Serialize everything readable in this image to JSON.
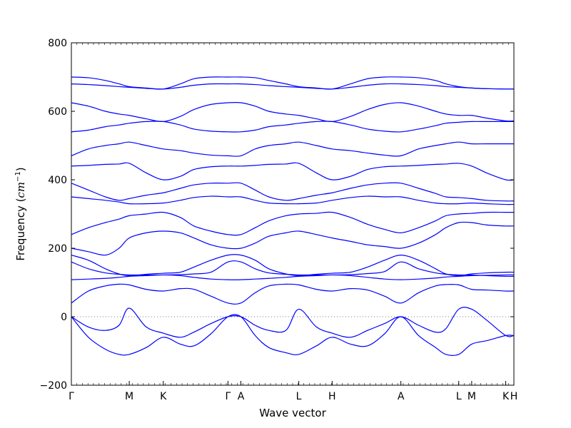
{
  "chart_data": {
    "type": "line",
    "title": "",
    "xlabel": "Wave vector",
    "ylabel_main": "Frequency (",
    "ylabel_math": "cm",
    "ylabel_sup": "−1",
    "ylabel_close": ")",
    "ylim": [
      -200,
      800
    ],
    "y_ticks": [
      -200,
      0,
      200,
      400,
      600,
      800
    ],
    "x_range": [
      0,
      13.0
    ],
    "high_symmetry_points": [
      {
        "label": "Γ",
        "x": 0.0
      },
      {
        "label": "M",
        "x": 1.7
      },
      {
        "label": "K",
        "x": 2.7
      },
      {
        "label": "Γ",
        "x": 4.6
      },
      {
        "label": "A",
        "x": 4.98
      },
      {
        "label": "L",
        "x": 6.68
      },
      {
        "label": "H",
        "x": 7.66
      },
      {
        "label": "A",
        "x": 9.68
      },
      {
        "label": "L",
        "x": 11.38
      },
      {
        "label": "M",
        "x": 11.76
      },
      {
        "label": "K",
        "x": 12.76
      },
      {
        "label": "H",
        "x": 13.0
      }
    ],
    "zero_line": true,
    "line_color": "#0000ff",
    "series": [
      {
        "x": [
          0,
          0.5,
          1,
          1.4,
          1.7,
          2.2,
          2.7,
          3.2,
          3.6,
          4.1,
          4.6,
          4.98,
          5.4,
          5.8,
          6.3,
          6.68,
          7.2,
          7.66,
          8.2,
          8.7,
          9.2,
          9.68,
          10.2,
          10.7,
          11.0,
          11.38,
          11.76,
          12.2,
          12.76,
          13.0
        ],
        "y": [
          0,
          -30,
          -40,
          -25,
          25,
          -30,
          -48,
          -60,
          -45,
          -20,
          0,
          0,
          -25,
          -40,
          -40,
          22,
          -30,
          -48,
          -60,
          -40,
          -20,
          0,
          -25,
          -45,
          -35,
          22,
          22,
          -10,
          -55,
          -55
        ]
      },
      {
        "x": [
          0,
          0.5,
          1,
          1.4,
          1.7,
          2.2,
          2.7,
          3.2,
          3.6,
          4.1,
          4.6,
          4.98,
          5.4,
          5.8,
          6.3,
          6.68,
          7.2,
          7.66,
          8.2,
          8.7,
          9.2,
          9.68,
          10.2,
          10.7,
          11.0,
          11.38,
          11.76,
          12.2,
          12.76,
          13.0
        ],
        "y": [
          0,
          -60,
          -95,
          -110,
          -110,
          -90,
          -60,
          -80,
          -85,
          -50,
          0,
          0,
          -55,
          -90,
          -105,
          -110,
          -85,
          -60,
          -80,
          -85,
          -50,
          0,
          -55,
          -90,
          -110,
          -110,
          -80,
          -70,
          -55,
          -55
        ]
      },
      {
        "x": [
          0,
          0.5,
          1,
          1.4,
          1.7,
          2.2,
          2.7,
          3.2,
          3.6,
          4.1,
          4.6,
          4.98,
          5.4,
          5.8,
          6.3,
          6.68,
          7.2,
          7.66,
          8.2,
          8.7,
          9.2,
          9.68,
          10.2,
          10.7,
          11.0,
          11.38,
          11.76,
          12.2,
          12.76,
          13.0
        ],
        "y": [
          40,
          75,
          90,
          95,
          93,
          80,
          75,
          82,
          80,
          60,
          40,
          40,
          70,
          90,
          95,
          93,
          80,
          75,
          82,
          78,
          60,
          40,
          70,
          90,
          94,
          93,
          80,
          78,
          75,
          75
        ]
      },
      {
        "x": [
          0,
          0.5,
          1,
          1.4,
          1.7,
          2.2,
          2.7,
          3.2,
          3.6,
          4.1,
          4.6,
          4.98,
          5.4,
          5.8,
          6.3,
          6.68,
          7.2,
          7.66,
          8.2,
          8.7,
          9.2,
          9.68,
          10.2,
          10.7,
          11.0,
          11.38,
          11.76,
          12.2,
          12.76,
          13.0
        ],
        "y": [
          108,
          110,
          112,
          115,
          118,
          120,
          122,
          120,
          115,
          110,
          108,
          108,
          110,
          112,
          115,
          118,
          120,
          122,
          120,
          115,
          110,
          108,
          110,
          113,
          116,
          118,
          120,
          121,
          122,
          122
        ]
      },
      {
        "x": [
          0,
          0.5,
          1,
          1.4,
          1.7,
          2.2,
          2.7,
          3.2,
          3.6,
          4.1,
          4.6,
          4.98,
          5.4,
          5.8,
          6.3,
          6.68,
          7.2,
          7.66,
          8.2,
          8.7,
          9.2,
          9.68,
          10.2,
          10.7,
          11.0,
          11.38,
          11.76,
          12.2,
          12.76,
          13.0
        ],
        "y": [
          160,
          140,
          128,
          124,
          122,
          122,
          122,
          123,
          125,
          130,
          160,
          160,
          140,
          128,
          124,
          122,
          122,
          122,
          123,
          126,
          132,
          160,
          140,
          128,
          124,
          122,
          122,
          120,
          118,
          118
        ]
      },
      {
        "x": [
          0,
          0.5,
          1,
          1.4,
          1.7,
          2.2,
          2.7,
          3.2,
          3.6,
          4.1,
          4.6,
          4.98,
          5.4,
          5.8,
          6.3,
          6.68,
          7.2,
          7.66,
          8.2,
          8.7,
          9.2,
          9.68,
          10.2,
          10.7,
          11.0,
          11.38,
          11.76,
          12.2,
          12.76,
          13.0
        ],
        "y": [
          180,
          165,
          140,
          125,
          120,
          124,
          127,
          130,
          145,
          165,
          180,
          180,
          165,
          140,
          125,
          120,
          124,
          127,
          130,
          145,
          165,
          180,
          165,
          140,
          125,
          120,
          125,
          128,
          130,
          130
        ]
      },
      {
        "x": [
          0,
          0.5,
          1,
          1.4,
          1.7,
          2.2,
          2.7,
          3.2,
          3.6,
          4.1,
          4.6,
          4.98,
          5.4,
          5.8,
          6.3,
          6.68,
          7.2,
          7.66,
          8.2,
          8.7,
          9.2,
          9.68,
          10.2,
          10.7,
          11.0,
          11.38,
          11.76,
          12.2,
          12.76,
          13.0
        ],
        "y": [
          200,
          190,
          180,
          200,
          230,
          245,
          250,
          245,
          230,
          210,
          200,
          200,
          215,
          235,
          245,
          250,
          240,
          230,
          220,
          210,
          205,
          200,
          215,
          240,
          260,
          275,
          275,
          268,
          265,
          265
        ]
      },
      {
        "x": [
          0,
          0.5,
          1,
          1.4,
          1.7,
          2.2,
          2.7,
          3.2,
          3.6,
          4.1,
          4.6,
          4.98,
          5.4,
          5.8,
          6.3,
          6.68,
          7.2,
          7.66,
          8.2,
          8.7,
          9.2,
          9.68,
          10.2,
          10.7,
          11.0,
          11.38,
          11.76,
          12.2,
          12.76,
          13.0
        ],
        "y": [
          240,
          260,
          275,
          285,
          295,
          300,
          305,
          290,
          265,
          250,
          240,
          240,
          260,
          280,
          295,
          300,
          302,
          305,
          290,
          270,
          255,
          245,
          260,
          280,
          295,
          300,
          302,
          305,
          305,
          305
        ]
      },
      {
        "x": [
          0,
          0.5,
          1,
          1.4,
          1.7,
          2.2,
          2.7,
          3.2,
          3.6,
          4.1,
          4.6,
          4.98,
          5.4,
          5.8,
          6.3,
          6.68,
          7.2,
          7.66,
          8.2,
          8.7,
          9.2,
          9.68,
          10.2,
          10.7,
          11.0,
          11.38,
          11.76,
          12.2,
          12.76,
          13.0
        ],
        "y": [
          350,
          345,
          340,
          335,
          330,
          330,
          332,
          340,
          348,
          352,
          350,
          350,
          340,
          332,
          330,
          330,
          332,
          340,
          348,
          352,
          350,
          350,
          340,
          332,
          330,
          330,
          332,
          330,
          328,
          328
        ]
      },
      {
        "x": [
          0,
          0.5,
          1,
          1.4,
          1.7,
          2.2,
          2.7,
          3.2,
          3.6,
          4.1,
          4.6,
          4.98,
          5.4,
          5.8,
          6.3,
          6.68,
          7.2,
          7.66,
          8.2,
          8.7,
          9.2,
          9.68,
          10.2,
          10.7,
          11.0,
          11.38,
          11.76,
          12.2,
          12.76,
          13.0
        ],
        "y": [
          390,
          370,
          350,
          340,
          345,
          355,
          362,
          375,
          385,
          390,
          390,
          390,
          370,
          350,
          340,
          345,
          355,
          362,
          375,
          385,
          390,
          390,
          375,
          360,
          350,
          348,
          345,
          340,
          338,
          338
        ]
      },
      {
        "x": [
          0,
          0.5,
          1,
          1.4,
          1.7,
          2.2,
          2.7,
          3.2,
          3.6,
          4.1,
          4.6,
          4.98,
          5.4,
          5.8,
          6.3,
          6.68,
          7.2,
          7.66,
          8.2,
          8.7,
          9.2,
          9.68,
          10.2,
          10.7,
          11.0,
          11.38,
          11.76,
          12.2,
          12.76,
          13.0
        ],
        "y": [
          440,
          442,
          445,
          446,
          448,
          420,
          400,
          410,
          430,
          438,
          440,
          440,
          442,
          445,
          446,
          448,
          420,
          400,
          410,
          430,
          438,
          440,
          442,
          445,
          446,
          448,
          440,
          420,
          400,
          400
        ]
      },
      {
        "x": [
          0,
          0.5,
          1,
          1.4,
          1.7,
          2.2,
          2.7,
          3.2,
          3.6,
          4.1,
          4.6,
          4.98,
          5.4,
          5.8,
          6.3,
          6.68,
          7.2,
          7.66,
          8.2,
          8.7,
          9.2,
          9.68,
          10.2,
          10.7,
          11.0,
          11.38,
          11.76,
          12.2,
          12.76,
          13.0
        ],
        "y": [
          470,
          490,
          500,
          505,
          510,
          500,
          490,
          485,
          478,
          472,
          470,
          470,
          490,
          500,
          505,
          510,
          500,
          490,
          485,
          478,
          472,
          470,
          490,
          500,
          505,
          510,
          505,
          505,
          505,
          505
        ]
      },
      {
        "x": [
          0,
          0.5,
          1,
          1.4,
          1.7,
          2.2,
          2.7,
          3.2,
          3.6,
          4.1,
          4.6,
          4.98,
          5.4,
          5.8,
          6.3,
          6.68,
          7.2,
          7.66,
          8.2,
          8.7,
          9.2,
          9.68,
          10.2,
          10.7,
          11.0,
          11.38,
          11.76,
          12.2,
          12.76,
          13.0
        ],
        "y": [
          540,
          545,
          555,
          560,
          565,
          570,
          570,
          560,
          548,
          542,
          540,
          540,
          545,
          555,
          560,
          565,
          570,
          570,
          560,
          548,
          542,
          540,
          548,
          558,
          565,
          568,
          570,
          570,
          570,
          570
        ]
      },
      {
        "x": [
          0,
          0.5,
          1,
          1.4,
          1.7,
          2.2,
          2.7,
          3.2,
          3.6,
          4.1,
          4.6,
          4.98,
          5.4,
          5.8,
          6.3,
          6.68,
          7.2,
          7.66,
          8.2,
          8.7,
          9.2,
          9.68,
          10.2,
          10.7,
          11.0,
          11.38,
          11.76,
          12.2,
          12.76,
          13.0
        ],
        "y": [
          625,
          615,
          600,
          592,
          588,
          578,
          570,
          585,
          605,
          620,
          625,
          625,
          615,
          600,
          592,
          588,
          578,
          570,
          585,
          605,
          620,
          625,
          615,
          600,
          592,
          588,
          588,
          580,
          572,
          572
        ]
      },
      {
        "x": [
          0,
          0.5,
          1,
          1.4,
          1.7,
          2.2,
          2.7,
          3.2,
          3.6,
          4.1,
          4.6,
          4.98,
          5.4,
          5.8,
          6.3,
          6.68,
          7.2,
          7.66,
          8.2,
          8.7,
          9.2,
          9.68,
          10.2,
          10.7,
          11.0,
          11.38,
          11.76,
          12.2,
          12.76,
          13.0
        ],
        "y": [
          680,
          678,
          675,
          672,
          670,
          667,
          665,
          670,
          676,
          680,
          680,
          680,
          678,
          675,
          672,
          670,
          667,
          665,
          670,
          676,
          680,
          680,
          678,
          675,
          672,
          670,
          668,
          666,
          665,
          665
        ]
      },
      {
        "x": [
          0,
          0.5,
          1,
          1.4,
          1.7,
          2.2,
          2.7,
          3.2,
          3.6,
          4.1,
          4.6,
          4.98,
          5.4,
          5.8,
          6.3,
          6.68,
          7.2,
          7.66,
          8.2,
          8.7,
          9.2,
          9.68,
          10.2,
          10.7,
          11.0,
          11.38,
          11.76,
          12.2,
          12.76,
          13.0
        ],
        "y": [
          700,
          698,
          690,
          680,
          672,
          668,
          665,
          680,
          695,
          700,
          700,
          700,
          698,
          690,
          680,
          672,
          668,
          665,
          680,
          695,
          700,
          700,
          698,
          690,
          680,
          672,
          668,
          666,
          665,
          665
        ]
      }
    ]
  }
}
